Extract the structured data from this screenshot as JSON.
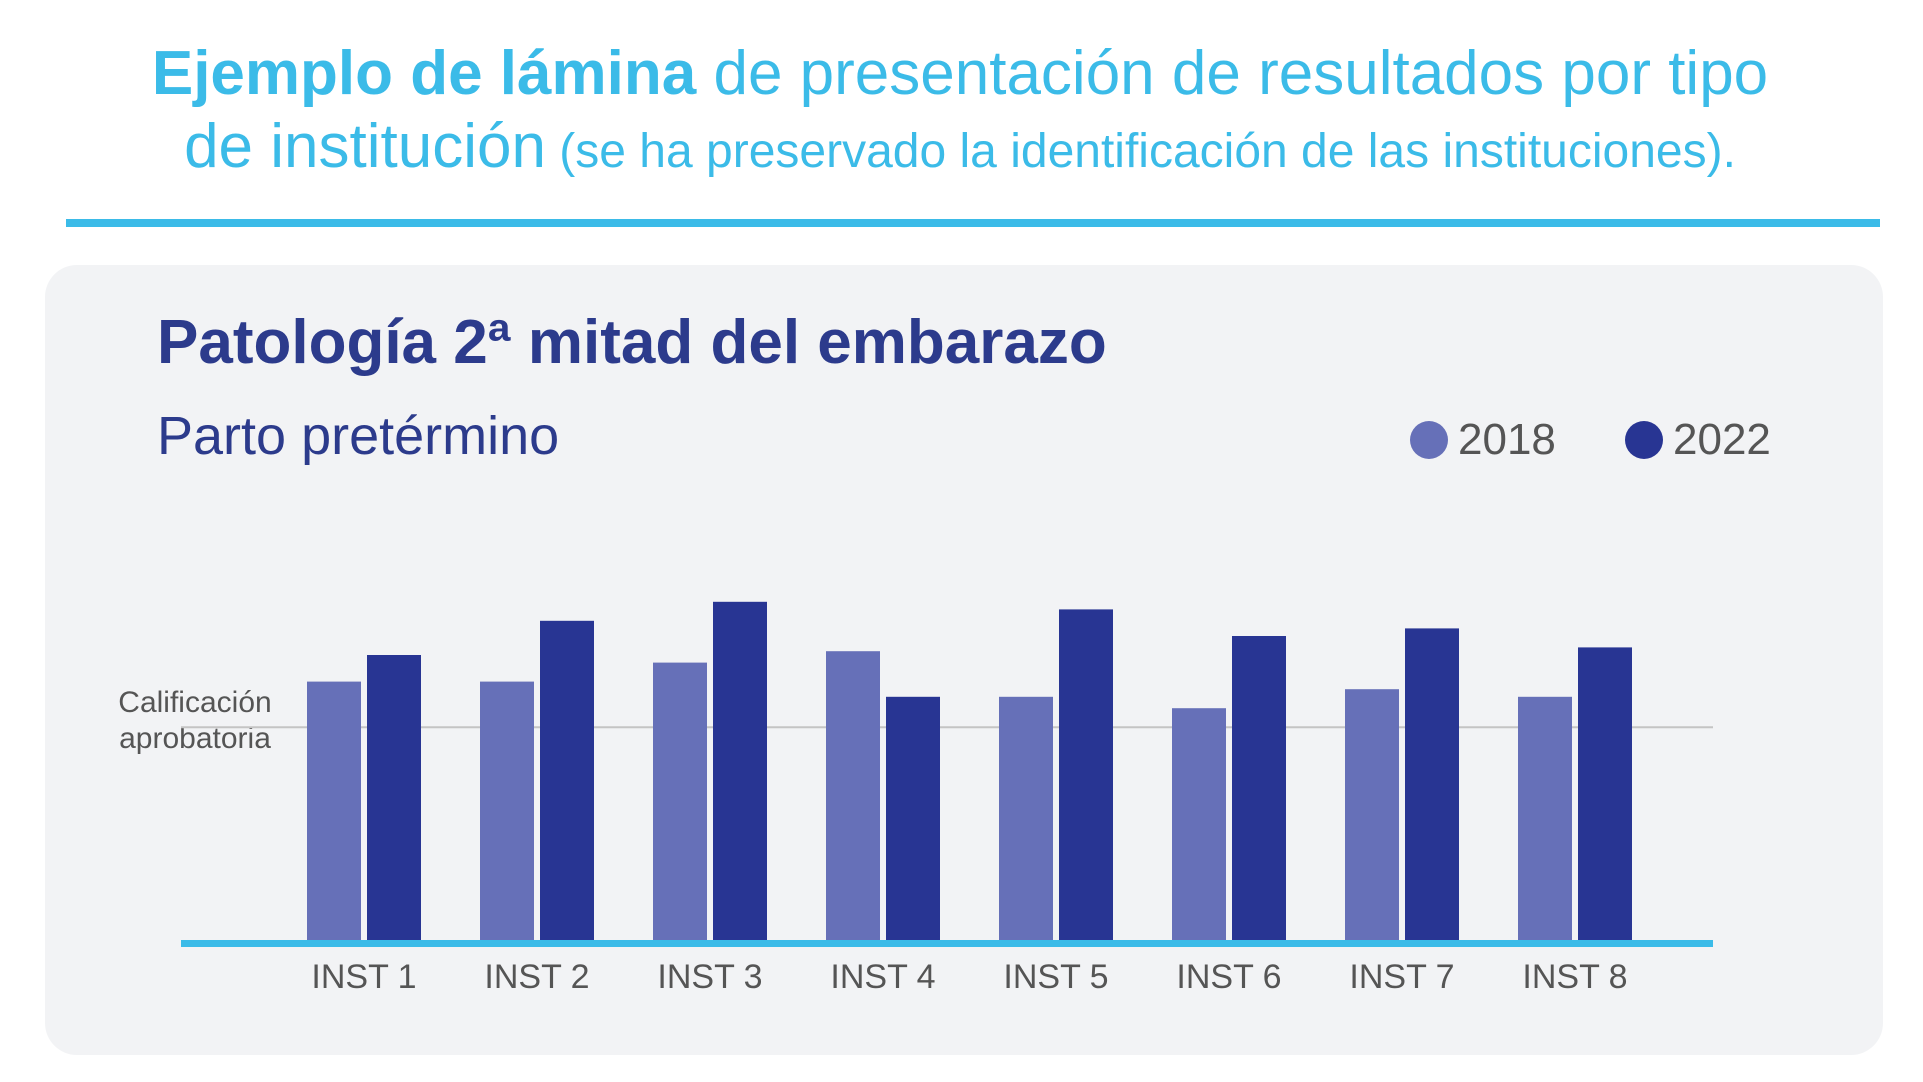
{
  "header": {
    "title_strong": "Ejemplo de lámina",
    "title_rest": " de presentación de resultados por tipo",
    "title_line2": "de institución",
    "title_note": " (se ha preservado la identificación de las instituciones)."
  },
  "colors": {
    "accent": "#3bbbe8",
    "title": "#2c3b8c",
    "series_2018": "#6670b8",
    "series_2022": "#283593",
    "pass_line": "#c4c4c4",
    "panel": "#f2f3f5"
  },
  "chart_data": {
    "type": "bar",
    "title": "Patología 2ª mitad del embarazo",
    "subtitle": "Parto pretérmino",
    "categories": [
      "INST 1",
      "INST 2",
      "INST 3",
      "INST 4",
      "INST 5",
      "INST 6",
      "INST 7",
      "INST 8"
    ],
    "series": [
      {
        "name": "2018",
        "values": [
          0.68,
          0.68,
          0.73,
          0.76,
          0.64,
          0.61,
          0.66,
          0.64
        ]
      },
      {
        "name": "2022",
        "values": [
          0.75,
          0.84,
          0.89,
          0.64,
          0.87,
          0.8,
          0.82,
          0.77
        ]
      }
    ],
    "ylim": [
      0,
      1
    ],
    "reference_line": {
      "label_line1": "Calificación",
      "label_line2": "aprobatoria",
      "value": 0.56
    },
    "legend_placement": "top-right",
    "grid": false
  }
}
